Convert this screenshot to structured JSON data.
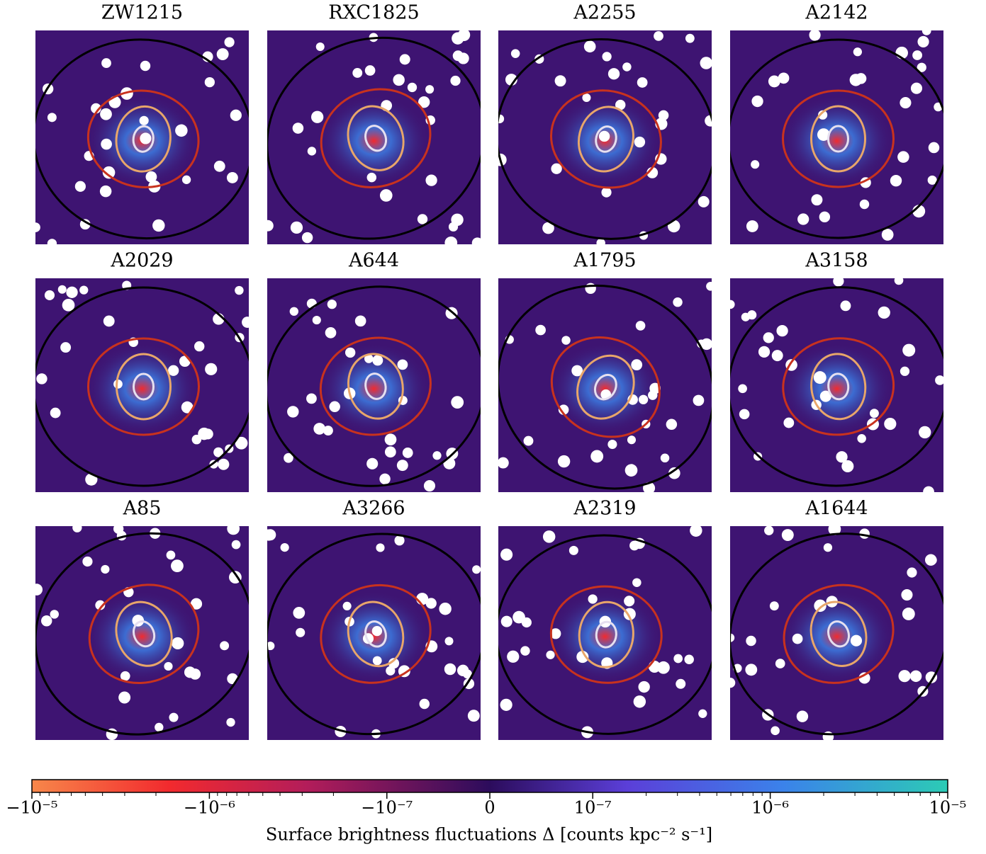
{
  "chart_data": {
    "type": "image_grid",
    "panels": [
      "ZW1215",
      "RXC1825",
      "A2255",
      "A2142",
      "A2029",
      "A644",
      "A1795",
      "A3158",
      "A85",
      "A3266",
      "A2319",
      "A1644"
    ],
    "colorbar": {
      "scale": "symlog",
      "linthresh": 1e-07,
      "xlim": [
        -1e-05,
        1e-05
      ],
      "xticks": [
        {
          "value": -1e-05,
          "label": "−10⁻⁵"
        },
        {
          "value": -1e-06,
          "label": "−10⁻⁶"
        },
        {
          "value": -1e-07,
          "label": "−10⁻⁷"
        },
        0,
        {
          "value": 1e-07,
          "label": "10⁻⁷"
        },
        {
          "value": 1e-06,
          "label": "10⁻⁶"
        },
        {
          "value": 1e-05,
          "label": "10⁻⁵"
        }
      ],
      "minor_xticks": [
        -9e-06,
        -8e-06,
        -7e-06,
        -6e-06,
        -5e-06,
        -4e-06,
        -3e-06,
        -2e-06,
        -9e-07,
        -8e-07,
        -7e-07,
        -6e-07,
        -5e-07,
        -4e-07,
        -3e-07,
        -2e-07,
        2e-07,
        3e-07,
        4e-07,
        5e-07,
        6e-07,
        7e-07,
        8e-07,
        9e-07,
        2e-06,
        3e-06,
        4e-06,
        5e-06,
        6e-06,
        7e-06,
        8e-06,
        9e-06
      ],
      "xlabel": "Surface brightness fluctuations Δ [counts kpc⁻² s⁻¹]"
    }
  }
}
